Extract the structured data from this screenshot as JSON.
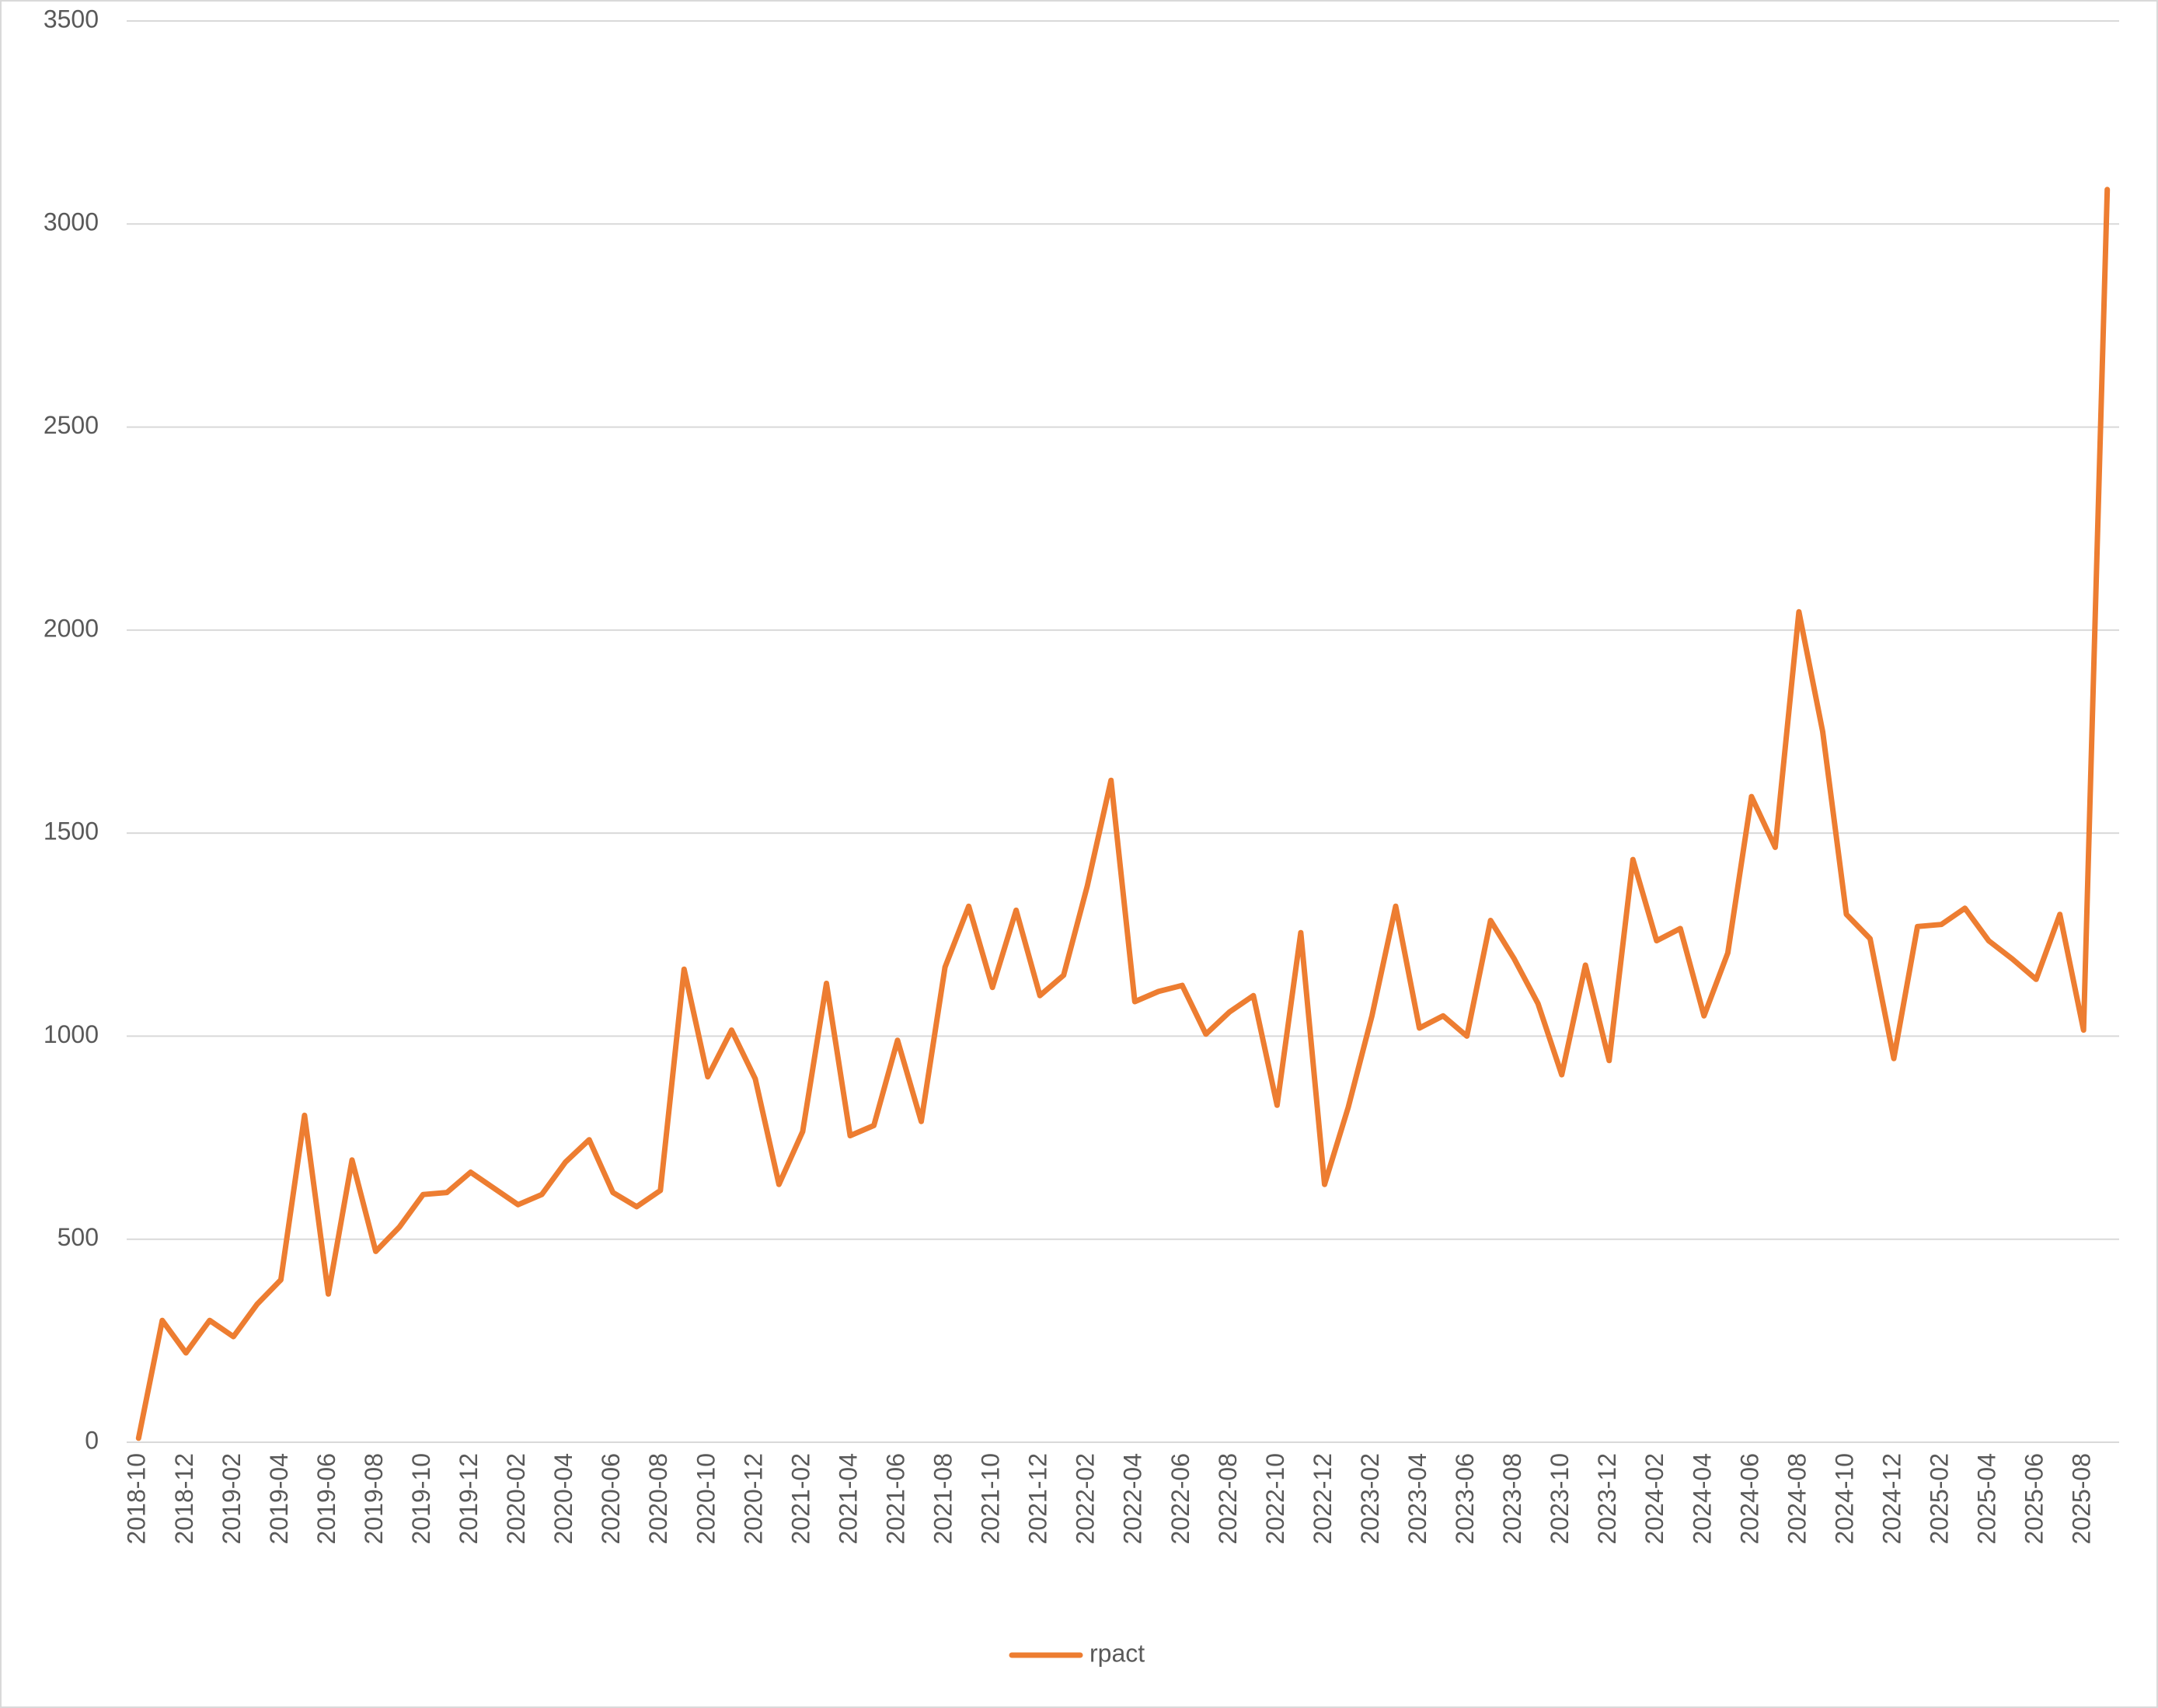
{
  "chart_data": {
    "type": "line",
    "categories": [
      "2018-10",
      null,
      "2018-12",
      null,
      "2019-02",
      null,
      "2019-04",
      null,
      "2019-06",
      null,
      "2019-08",
      null,
      "2019-10",
      null,
      "2019-12",
      null,
      "2020-02",
      null,
      "2020-04",
      null,
      "2020-06",
      null,
      "2020-08",
      null,
      "2020-10",
      null,
      "2020-12",
      null,
      "2021-02",
      null,
      "2021-04",
      null,
      "2021-06",
      null,
      "2021-08",
      null,
      "2021-10",
      null,
      "2021-12",
      null,
      "2022-02",
      null,
      "2022-04",
      null,
      "2022-06",
      null,
      "2022-08",
      null,
      "2022-10",
      null,
      "2022-12",
      null,
      "2023-02",
      null,
      "2023-04",
      null,
      "2023-06",
      null,
      "2023-08",
      null,
      "2023-10",
      null,
      "2023-12",
      null,
      "2024-02",
      null,
      "2024-04",
      null,
      "2024-06",
      null,
      "2024-08",
      null,
      "2024-10",
      null,
      "2024-12",
      null,
      "2025-02",
      null,
      "2025-04",
      null,
      "2025-06",
      null,
      "2025-08",
      null
    ],
    "series": [
      {
        "name": "rpact",
        "color": "#ed7d31",
        "values": [
          10,
          300,
          220,
          300,
          260,
          340,
          400,
          805,
          365,
          695,
          470,
          530,
          610,
          615,
          665,
          625,
          585,
          610,
          690,
          745,
          615,
          580,
          620,
          1165,
          900,
          1015,
          895,
          635,
          765,
          1130,
          755,
          780,
          990,
          790,
          1170,
          1320,
          1120,
          1310,
          1100,
          1150,
          1370,
          1630,
          1085,
          1110,
          1125,
          1005,
          1060,
          1100,
          830,
          1255,
          635,
          825,
          1050,
          1320,
          1020,
          1050,
          1000,
          1285,
          1190,
          1080,
          905,
          1175,
          940,
          1435,
          1235,
          1265,
          1050,
          1205,
          1590,
          1465,
          2045,
          1750,
          1300,
          1240,
          945,
          1270,
          1275,
          1315,
          1235,
          1190,
          1140,
          1300,
          1015,
          3085
        ]
      }
    ],
    "ylim": [
      0,
      3500
    ],
    "yticks": [
      0,
      500,
      1000,
      1500,
      2000,
      2500,
      3000,
      3500
    ],
    "grid": true,
    "legend": "bottom"
  }
}
